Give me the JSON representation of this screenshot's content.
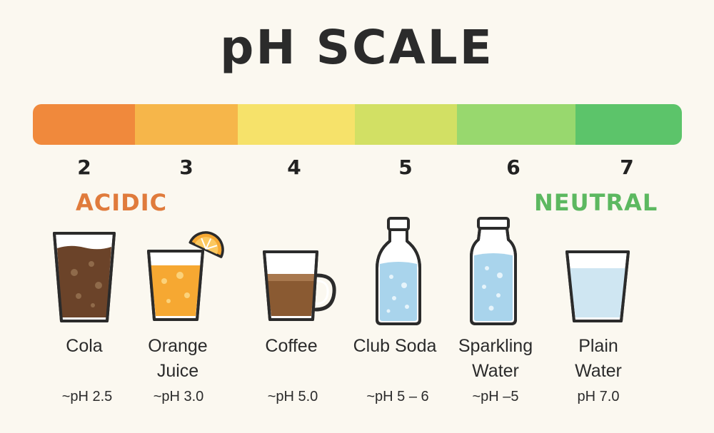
{
  "title": "pH SCALE",
  "scale": {
    "colors": [
      "#f0893c",
      "#f6b64a",
      "#f6e26a",
      "#d2e064",
      "#98d86e",
      "#5cc46a"
    ],
    "ticks": [
      "2",
      "3",
      "4",
      "5",
      "6",
      "7"
    ]
  },
  "labels": {
    "acidic": "ACIDIC",
    "acidic_color": "#e07b3c",
    "neutral": "NEUTRAL",
    "neutral_color": "#5cb860"
  },
  "drinks": [
    {
      "icon": "cola-glass-icon",
      "name": "Cola",
      "ph": "~pH 2.5"
    },
    {
      "icon": "orange-juice-glass-icon",
      "name": "Orange Juice",
      "ph": "~pH 3.0"
    },
    {
      "icon": "coffee-mug-icon",
      "name": "Coffee",
      "ph": "~pH 5.0"
    },
    {
      "icon": "club-soda-bottle-icon",
      "name": "Club Soda",
      "ph": "~pH 5 – 6"
    },
    {
      "icon": "sparkling-water-bottle-icon",
      "name": "Sparkling Water",
      "ph": "~pH –5"
    },
    {
      "icon": "plain-water-glass-icon",
      "name": "Plain Water",
      "ph": "pH 7.0"
    }
  ]
}
